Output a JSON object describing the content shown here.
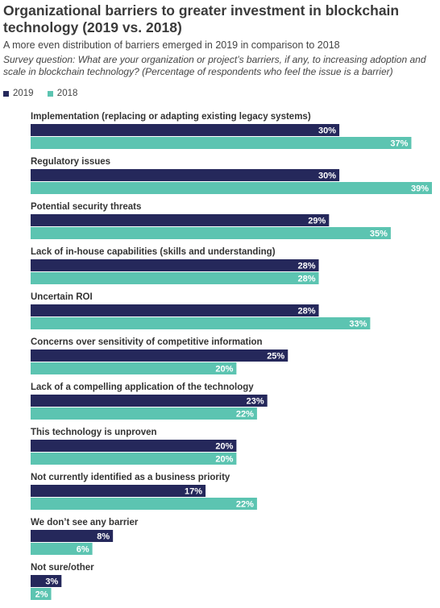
{
  "header": {
    "title": "Organizational barriers to greater investment in blockchain technology (2019 vs. 2018)",
    "subtitle": "A more even distribution of barriers emerged in 2019 in comparison to 2018",
    "question": "Survey question: What are your organization or project’s barriers, if any, to increasing adoption and scale in blockchain technology? (Percentage of respondents who feel the issue is a barrier)"
  },
  "colors": {
    "s2019": "#25285b",
    "s2018": "#5cc4b1"
  },
  "chart_data": {
    "type": "bar",
    "orientation": "horizontal",
    "categories": [
      "Implementation (replacing or adapting existing legacy systems)",
      "Regulatory issues",
      "Potential security threats",
      "Lack of in-house capabilities (skills and understanding)",
      "Uncertain ROI",
      "Concerns over sensitivity of competitive information",
      "Lack of a compelling application of the technology",
      "This technology is unproven",
      "Not currently identified as a business priority",
      "We don’t see any barrier",
      "Not sure/other"
    ],
    "series": [
      {
        "name": "2019",
        "values": [
          30,
          30,
          29,
          28,
          28,
          25,
          23,
          20,
          17,
          8,
          3
        ],
        "labels": [
          "30%",
          "30%",
          "29%",
          "28%",
          "28%",
          "25%",
          "23%",
          "20%",
          "17%",
          "8%",
          "3%"
        ]
      },
      {
        "name": "2018",
        "values": [
          37,
          39,
          35,
          28,
          33,
          20,
          22,
          20,
          22,
          6,
          2
        ],
        "labels": [
          "37%",
          "39%",
          "35%",
          "28%",
          "33%",
          "20%",
          "22%",
          "20%",
          "22%",
          "6%",
          "2%"
        ]
      }
    ],
    "xlim": [
      0,
      39
    ],
    "legend": "top-left",
    "grid": false
  }
}
